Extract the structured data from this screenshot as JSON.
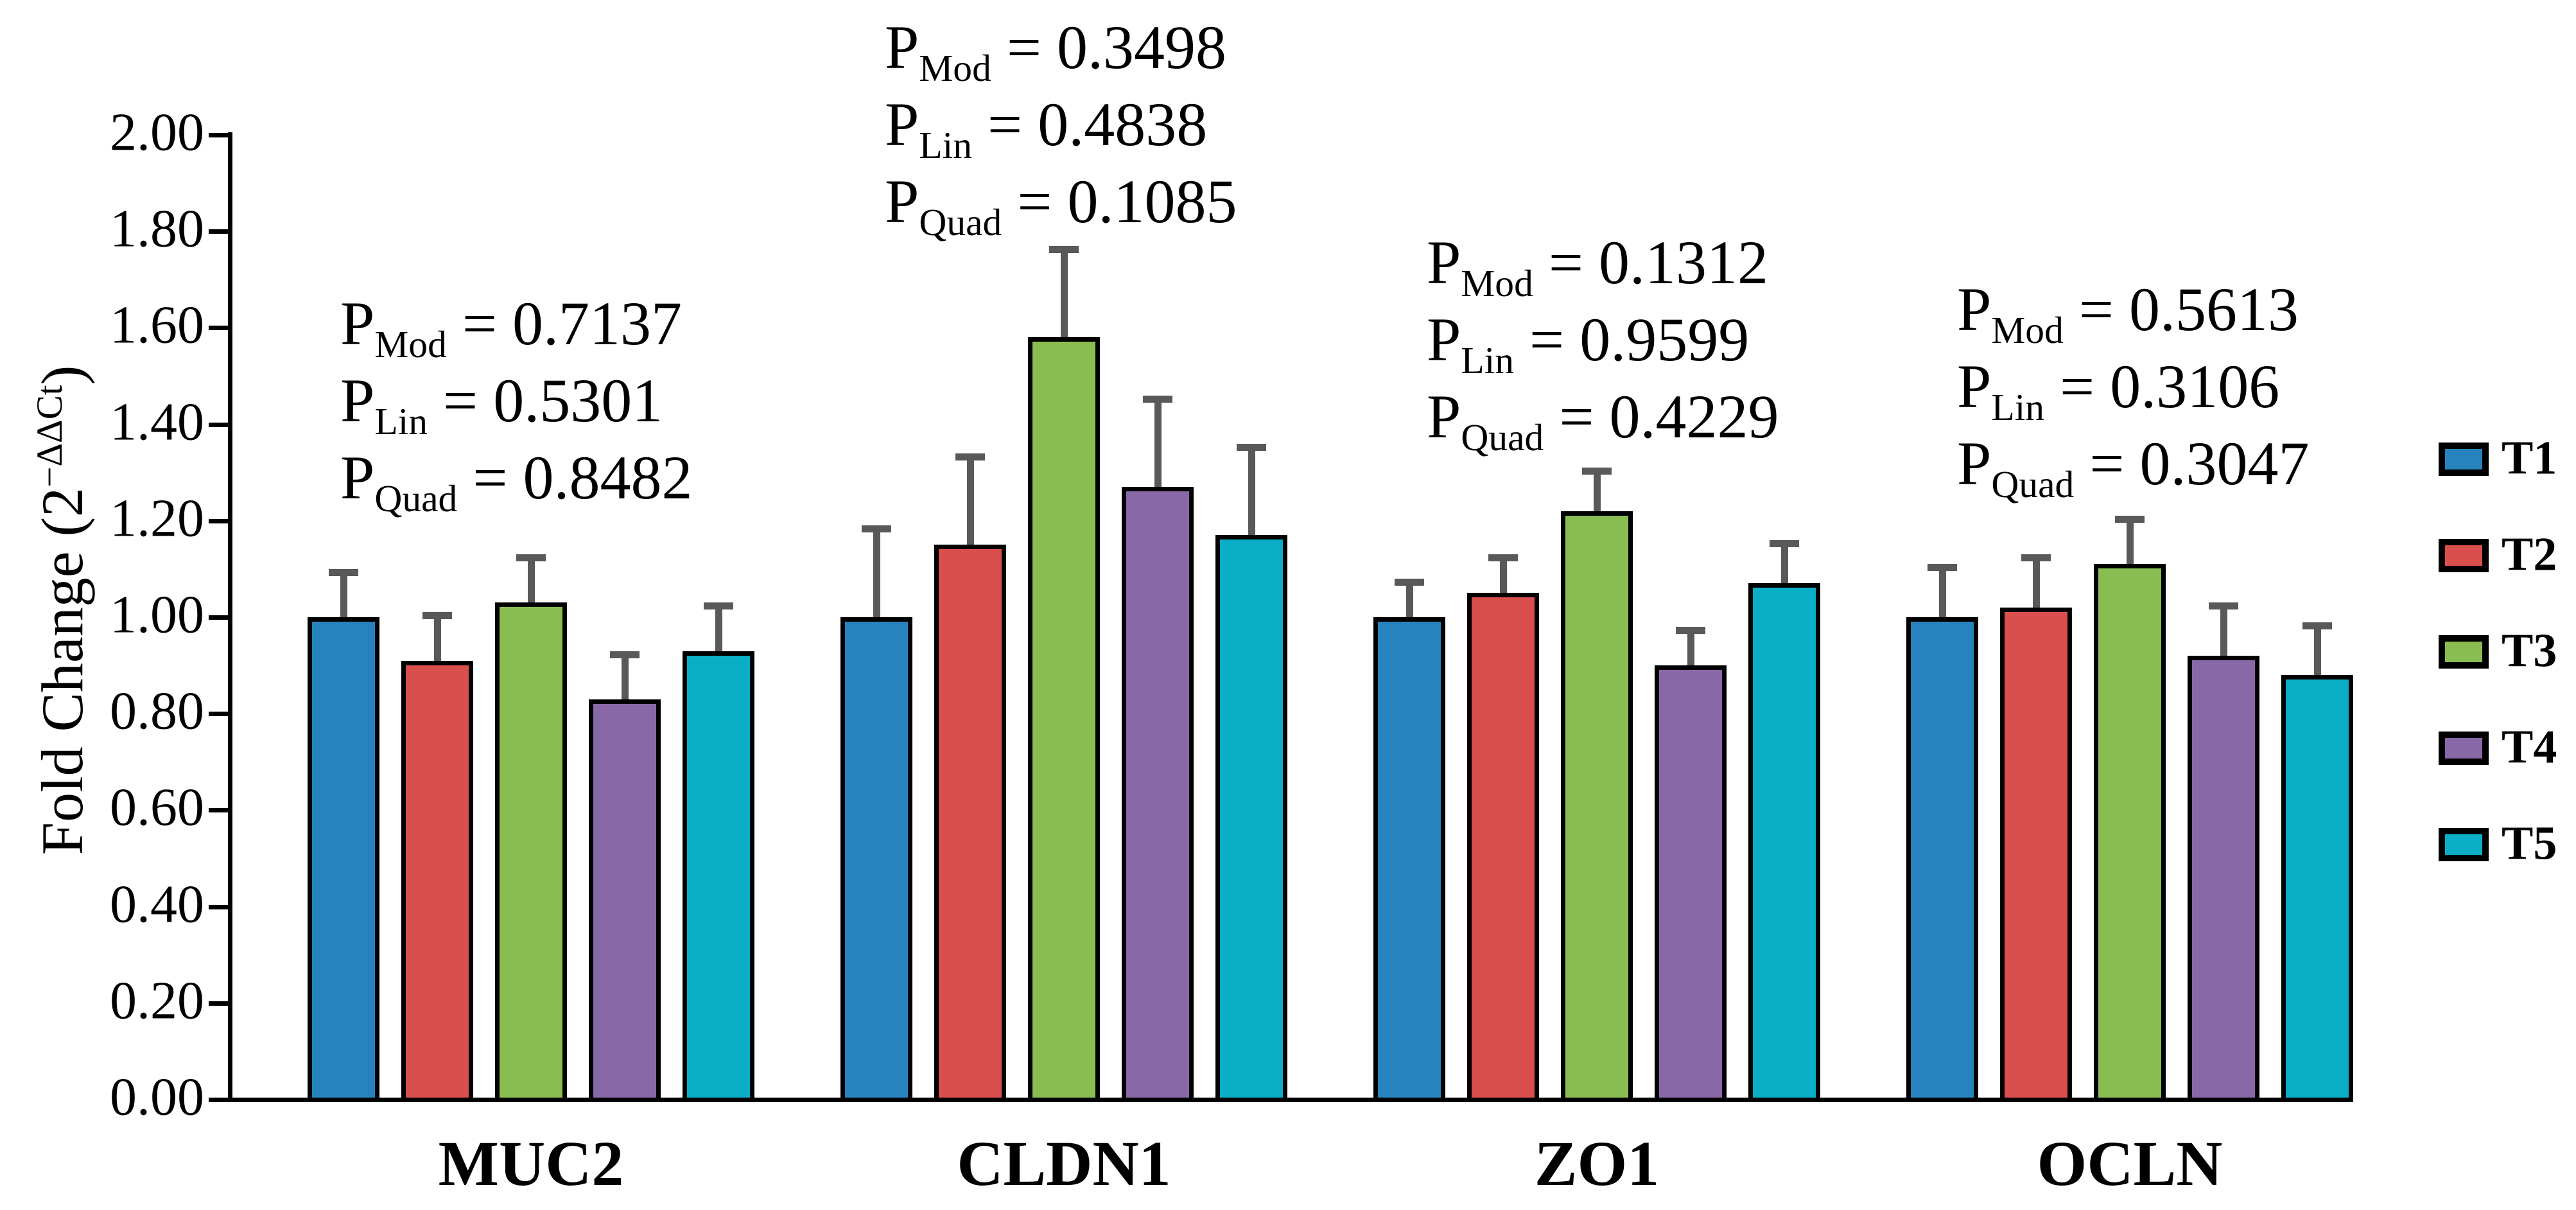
{
  "chart_data": {
    "type": "bar",
    "title": "",
    "ylabel": {
      "prefix": "Fold Change (2",
      "sup": "−ΔΔCt",
      "suffix": ")"
    },
    "ylim": [
      0,
      2
    ],
    "ytick_values": [
      0,
      0.2,
      0.4,
      0.6,
      0.8,
      1.0,
      1.2,
      1.4,
      1.6,
      1.8,
      2.0
    ],
    "ytick_labels": [
      "0.00",
      "0.20",
      "0.40",
      "0.60",
      "0.80",
      "1.00",
      "1.20",
      "1.40",
      "1.60",
      "1.80",
      "2.00"
    ],
    "grid": "off",
    "legend_position": "right",
    "categories": [
      "MUC2",
      "CLDN1",
      "ZO1",
      "OCLN"
    ],
    "series": [
      {
        "name": "T1",
        "color": "#2783BE",
        "values": [
          1.0,
          1.0,
          1.0,
          1.0
        ],
        "errors_plus": [
          0.1,
          0.19,
          0.08,
          0.11
        ]
      },
      {
        "name": "T2",
        "color": "#D94F4E",
        "values": [
          0.91,
          1.15,
          1.05,
          1.02
        ],
        "errors_plus": [
          0.1,
          0.19,
          0.08,
          0.11
        ]
      },
      {
        "name": "T3",
        "color": "#8ABD51",
        "values": [
          1.03,
          1.58,
          1.22,
          1.11
        ],
        "errors_plus": [
          0.1,
          0.19,
          0.09,
          0.1
        ]
      },
      {
        "name": "T4",
        "color": "#8968A8",
        "values": [
          0.83,
          1.27,
          0.9,
          0.92
        ],
        "errors_plus": [
          0.1,
          0.19,
          0.08,
          0.11
        ]
      },
      {
        "name": "T5",
        "color": "#0AAEC6",
        "values": [
          0.93,
          1.17,
          1.07,
          0.88
        ],
        "errors_plus": [
          0.1,
          0.19,
          0.09,
          0.11
        ]
      }
    ],
    "annotations": [
      {
        "category": "MUC2",
        "lines": [
          {
            "sub": "Mod",
            "value": "0.7137"
          },
          {
            "sub": "Lin",
            "value": "0.5301"
          },
          {
            "sub": "Quad",
            "value": "0.8482"
          }
        ]
      },
      {
        "category": "CLDN1",
        "lines": [
          {
            "sub": "Mod",
            "value": "0.3498"
          },
          {
            "sub": "Lin",
            "value": "0.4838"
          },
          {
            "sub": "Quad",
            "value": "0.1085"
          }
        ]
      },
      {
        "category": "ZO1",
        "lines": [
          {
            "sub": "Mod",
            "value": "0.1312"
          },
          {
            "sub": "Lin",
            "value": "0.9599"
          },
          {
            "sub": "Quad",
            "value": "0.4229"
          }
        ]
      },
      {
        "category": "OCLN",
        "lines": [
          {
            "sub": "Mod",
            "value": "0.5613"
          },
          {
            "sub": "Lin",
            "value": "0.3106"
          },
          {
            "sub": "Quad",
            "value": "0.3047"
          }
        ]
      }
    ],
    "annotation_text": {
      "p_prefix": "P",
      "equals": " = "
    },
    "colors": {
      "axis": "#000000",
      "error_bar": "#595959",
      "bar_border": "#000000",
      "background": "#ffffff"
    }
  },
  "legend": {
    "items": [
      {
        "label": "T1"
      },
      {
        "label": "T2"
      },
      {
        "label": "T3"
      },
      {
        "label": "T4"
      },
      {
        "label": "T5"
      }
    ]
  }
}
